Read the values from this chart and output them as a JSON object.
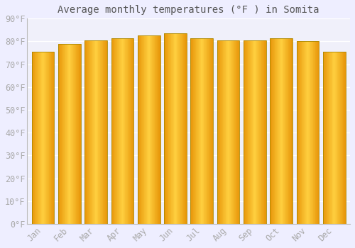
{
  "title": "Average monthly temperatures (°F ) in Somita",
  "months": [
    "Jan",
    "Feb",
    "Mar",
    "Apr",
    "May",
    "Jun",
    "Jul",
    "Aug",
    "Sep",
    "Oct",
    "Nov",
    "Dec"
  ],
  "values": [
    75.5,
    79.0,
    80.5,
    81.5,
    82.5,
    83.5,
    81.5,
    80.5,
    80.5,
    81.5,
    80.0,
    75.5
  ],
  "bar_color_left": "#E8970A",
  "bar_color_center": "#FFD040",
  "bar_color_right": "#E8970A",
  "bar_edge_color": "#999900",
  "background_color": "#EEEEFF",
  "plot_bg_color": "#F0F0FA",
  "grid_color": "#FFFFFF",
  "text_color": "#AAAAAA",
  "title_color": "#555555",
  "ylim": [
    0,
    90
  ],
  "yticks": [
    0,
    10,
    20,
    30,
    40,
    50,
    60,
    70,
    80,
    90
  ],
  "ytick_labels": [
    "0°F",
    "10°F",
    "20°F",
    "30°F",
    "40°F",
    "50°F",
    "60°F",
    "70°F",
    "80°F",
    "90°F"
  ],
  "title_fontsize": 10,
  "tick_fontsize": 8.5,
  "bar_width": 0.85
}
